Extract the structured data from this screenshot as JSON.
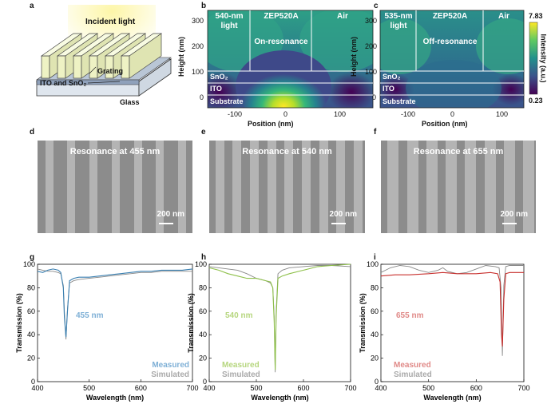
{
  "panel_letters": {
    "a": "a",
    "b": "b",
    "c": "c",
    "d": "d",
    "e": "e",
    "f": "f",
    "g": "g",
    "h": "h",
    "i": "i"
  },
  "panel_a": {
    "incident_light": "Incident light",
    "grating": "Grating",
    "ito_sno2": "ITO and SnO₂",
    "glass": "Glass"
  },
  "panel_b": {
    "region_left": "540-nm light",
    "region_mid": "ZEP520A",
    "region_right": "Air",
    "state": "On-resonance",
    "layer_sno2": "SnO₂",
    "layer_ito": "ITO",
    "layer_substrate": "Substrate",
    "xlabel": "Position (nm)",
    "ylabel": "Height (nm)",
    "xticks": [
      "-100",
      "0",
      "100"
    ],
    "yticks": [
      "0",
      "100",
      "200",
      "300"
    ]
  },
  "panel_c": {
    "region_left": "535-nm light",
    "region_mid": "ZEP520A",
    "region_right": "Air",
    "state": "Off-resonance",
    "layer_sno2": "SnO₂",
    "layer_ito": "ITO",
    "layer_substrate": "Substrate",
    "xlabel": "Position (nm)",
    "ylabel": "Height (nm)",
    "xticks": [
      "-100",
      "0",
      "100"
    ],
    "yticks": [
      "0",
      "100",
      "200",
      "300"
    ],
    "colorbar_max": "7.83",
    "colorbar_min": "0.23",
    "colorbar_label": "Intensity (a.u.)"
  },
  "sem": [
    {
      "title": "Resonance at 455 nm",
      "scale": "200 nm"
    },
    {
      "title": "Resonance at 540 nm",
      "scale": "200 nm"
    },
    {
      "title": "Resonance at 655 nm",
      "scale": "200 nm"
    }
  ],
  "colors": {
    "blue": "#3a7fb0",
    "green": "#8ec04a",
    "red": "#c8312f",
    "gray": "#888888",
    "label_blue": "#7fb0d6",
    "label_green": "#b6d67e",
    "label_red": "#e08a88"
  },
  "chart_data": [
    {
      "type": "line",
      "xlabel": "Wavelength (nm)",
      "ylabel": "Transmission (%)",
      "xlim": [
        400,
        700
      ],
      "ylim": [
        0,
        100
      ],
      "xticks": [
        400,
        500,
        600,
        700
      ],
      "yticks": [
        0,
        20,
        40,
        60,
        80,
        100
      ],
      "annotation": "455 nm",
      "legend": [
        "Measured",
        "Simulated"
      ],
      "series": [
        {
          "name": "Measured",
          "x": [
            400,
            410,
            420,
            430,
            440,
            445,
            450,
            452,
            455,
            458,
            462,
            470,
            480,
            500,
            520,
            540,
            560,
            580,
            600,
            620,
            640,
            660,
            680,
            700
          ],
          "y": [
            94,
            93,
            95,
            96,
            95,
            93,
            80,
            55,
            38,
            60,
            86,
            88,
            89,
            89,
            90,
            91,
            92,
            93,
            94,
            94,
            95,
            95,
            95,
            96
          ]
        },
        {
          "name": "Simulated",
          "x": [
            400,
            410,
            420,
            430,
            440,
            445,
            450,
            452,
            455,
            458,
            462,
            470,
            480,
            500,
            520,
            540,
            560,
            580,
            600,
            620,
            640,
            660,
            680,
            700
          ],
          "y": [
            96,
            95,
            94,
            94,
            93,
            92,
            82,
            60,
            36,
            62,
            84,
            86,
            87,
            88,
            89,
            90,
            91,
            92,
            93,
            93,
            94,
            94,
            94,
            94
          ]
        }
      ]
    },
    {
      "type": "line",
      "xlabel": "Wavelength (nm)",
      "ylabel": "Transmission (%)",
      "xlim": [
        400,
        700
      ],
      "ylim": [
        0,
        100
      ],
      "xticks": [
        400,
        500,
        600,
        700
      ],
      "yticks": [
        0,
        20,
        40,
        60,
        80,
        100
      ],
      "annotation": "540 nm",
      "legend": [
        "Measured",
        "Simulated"
      ],
      "series": [
        {
          "name": "Measured",
          "x": [
            400,
            420,
            440,
            460,
            480,
            500,
            520,
            530,
            535,
            538,
            540,
            542,
            546,
            555,
            570,
            600,
            630,
            660,
            700
          ],
          "y": [
            97,
            95,
            92,
            90,
            88,
            88,
            86,
            85,
            80,
            50,
            10,
            55,
            88,
            90,
            92,
            95,
            98,
            99,
            100
          ]
        },
        {
          "name": "Simulated",
          "x": [
            400,
            420,
            440,
            460,
            480,
            500,
            520,
            530,
            535,
            538,
            540,
            542,
            546,
            555,
            570,
            600,
            630,
            660,
            700
          ],
          "y": [
            98,
            97,
            96,
            95,
            92,
            88,
            86,
            84,
            80,
            55,
            8,
            60,
            92,
            95,
            97,
            98,
            99,
            99,
            98
          ]
        }
      ]
    },
    {
      "type": "line",
      "xlabel": "Wavelength (nm)",
      "ylabel": "Transmission (%)",
      "xlim": [
        400,
        700
      ],
      "ylim": [
        0,
        100
      ],
      "xticks": [
        400,
        500,
        600,
        700
      ],
      "yticks": [
        0,
        20,
        40,
        60,
        80,
        100
      ],
      "annotation": "655 nm",
      "legend": [
        "Measured",
        "Simulated"
      ],
      "series": [
        {
          "name": "Measured",
          "x": [
            400,
            430,
            460,
            500,
            530,
            560,
            600,
            630,
            645,
            650,
            653,
            655,
            658,
            662,
            670,
            690,
            700
          ],
          "y": [
            90,
            91,
            91,
            92,
            93,
            92,
            92,
            93,
            92,
            85,
            40,
            30,
            70,
            92,
            93,
            93,
            93
          ]
        },
        {
          "name": "Simulated",
          "x": [
            400,
            420,
            440,
            460,
            480,
            500,
            520,
            530,
            540,
            560,
            580,
            600,
            620,
            640,
            648,
            652,
            655,
            658,
            662,
            670,
            700
          ],
          "y": [
            93,
            97,
            99,
            98,
            95,
            93,
            95,
            97,
            94,
            92,
            93,
            96,
            99,
            98,
            97,
            80,
            22,
            82,
            98,
            99,
            99
          ]
        }
      ]
    }
  ]
}
